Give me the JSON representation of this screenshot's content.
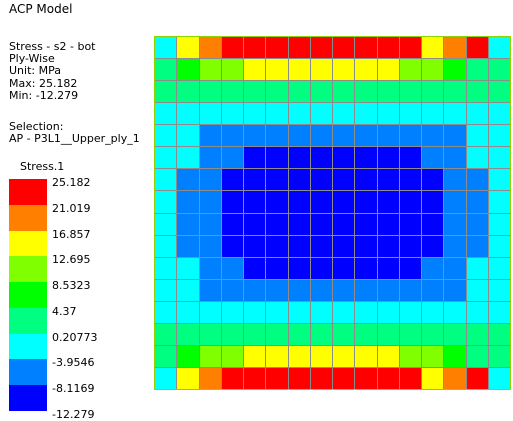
{
  "title": "ACP Model",
  "info": {
    "result": "Stress - s2 - bot",
    "mode": "Ply-Wise",
    "unit": "Unit: MPa",
    "max": "Max: 25.182",
    "min": "Min: -12.279"
  },
  "selection": {
    "label": "Selection:",
    "value": "AP - P3L1__Upper_ply_1"
  },
  "legend": {
    "title": "Stress.1",
    "labels": [
      "25.182",
      "21.019",
      "16.857",
      "12.695",
      "8.5323",
      "4.37",
      "0.20773",
      "-3.9546",
      "-8.1169",
      "-12.279"
    ],
    "colors": [
      "#ff0000",
      "#ff8000",
      "#ffff00",
      "#80ff00",
      "#00ff00",
      "#00ff80",
      "#00ffff",
      "#0080ff",
      "#0000ff"
    ]
  },
  "grid_rows": [
    "0678888888886780",
    "1234556665543211",
    "1111111111111111",
    "0000000000000000",
    "0011111111111100",
    "0011222222221100",
    "0112222222222110",
    "0112222222222110",
    "0112222222222110",
    "0112222222222110",
    "0011222222221100",
    "0011111111111100",
    "0000000000000000",
    "1111111111111111",
    "1234556665543211",
    "0678888888886780"
  ],
  "grid_palette": [
    "#00ffff",
    "#00ff80",
    "#00ff00",
    "#80ff00",
    "#80ff00",
    "#ffff00",
    "#ffff00",
    "#ff8000",
    "#ff0000"
  ]
}
